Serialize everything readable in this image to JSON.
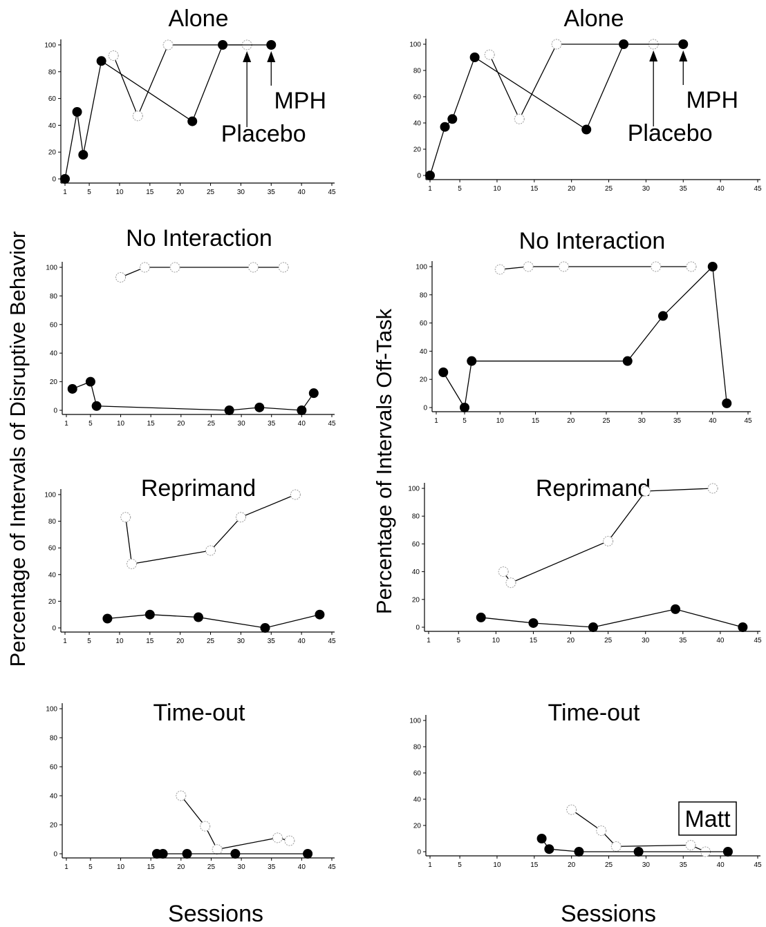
{
  "x_ticks": [
    1,
    5,
    10,
    15,
    20,
    25,
    30,
    35,
    40,
    45
  ],
  "y_ticks": [
    0,
    20,
    40,
    60,
    80,
    100
  ],
  "left_ylabel": "Percentage of Intervals of Disruptive Behavior",
  "right_ylabel": "Percentage of Intervals Off-Task",
  "xlabel": "Sessions",
  "participant": "Matt",
  "chart_data": [
    {
      "type": "line",
      "title": "Alone",
      "xlim": [
        1,
        45
      ],
      "ylim": [
        0,
        100
      ],
      "annotations": [
        {
          "text": "Placebo",
          "x": 31,
          "series": "Placebo"
        },
        {
          "text": "MPH",
          "x": 35,
          "series": "MPH"
        }
      ],
      "series": [
        {
          "marker": "open",
          "x": [
            9,
            13,
            18,
            31
          ],
          "y": [
            92,
            47,
            100,
            100
          ]
        },
        {
          "marker": "filled",
          "x": [
            1,
            3,
            4,
            7,
            22,
            27,
            35
          ],
          "y": [
            0,
            50,
            18,
            88,
            43,
            100,
            100
          ]
        }
      ]
    },
    {
      "type": "line",
      "title": "Alone",
      "xlim": [
        1,
        45
      ],
      "ylim": [
        0,
        100
      ],
      "annotations": [
        {
          "text": "Placebo",
          "x": 31,
          "series": "Placebo"
        },
        {
          "text": "MPH",
          "x": 35,
          "series": "MPH"
        }
      ],
      "series": [
        {
          "marker": "open",
          "x": [
            9,
            13,
            18,
            31
          ],
          "y": [
            92,
            43,
            100,
            100
          ]
        },
        {
          "marker": "filled",
          "x": [
            1,
            3,
            4,
            7,
            22,
            27,
            35
          ],
          "y": [
            0,
            37,
            43,
            90,
            35,
            100,
            100
          ]
        }
      ]
    },
    {
      "type": "line",
      "title": "No Interaction",
      "xlim": [
        1,
        45
      ],
      "ylim": [
        0,
        100
      ],
      "series": [
        {
          "marker": "open",
          "x": [
            10,
            14,
            19,
            32,
            37
          ],
          "y": [
            93,
            100,
            100,
            100,
            100
          ]
        },
        {
          "marker": "filled",
          "x": [
            2,
            5,
            6,
            28,
            33,
            40,
            42
          ],
          "y": [
            15,
            20,
            3,
            0,
            2,
            0,
            12
          ]
        }
      ]
    },
    {
      "type": "line",
      "title": "No Interaction",
      "xlim": [
        1,
        45
      ],
      "ylim": [
        0,
        100
      ],
      "series": [
        {
          "marker": "open",
          "x": [
            10,
            14,
            19,
            32,
            37
          ],
          "y": [
            98,
            100,
            100,
            100,
            100
          ]
        },
        {
          "marker": "filled",
          "x": [
            2,
            5,
            6,
            28,
            33,
            40,
            42
          ],
          "y": [
            25,
            0,
            33,
            33,
            65,
            100,
            3
          ]
        }
      ]
    },
    {
      "type": "line",
      "title": "Reprimand",
      "xlim": [
        1,
        45
      ],
      "ylim": [
        0,
        100
      ],
      "series": [
        {
          "marker": "open",
          "x": [
            11,
            12,
            25,
            30,
            39
          ],
          "y": [
            83,
            48,
            58,
            83,
            100
          ]
        },
        {
          "marker": "filled",
          "x": [
            8,
            15,
            23,
            34,
            43
          ],
          "y": [
            7,
            10,
            8,
            0,
            10
          ]
        }
      ]
    },
    {
      "type": "line",
      "title": "Reprimand",
      "xlim": [
        1,
        45
      ],
      "ylim": [
        0,
        100
      ],
      "series": [
        {
          "marker": "open",
          "x": [
            11,
            12,
            25,
            30,
            39
          ],
          "y": [
            40,
            32,
            62,
            98,
            100
          ]
        },
        {
          "marker": "filled",
          "x": [
            8,
            15,
            23,
            34,
            43
          ],
          "y": [
            7,
            3,
            0,
            13,
            0
          ]
        }
      ]
    },
    {
      "type": "line",
      "title": "Time-out",
      "xlim": [
        1,
        45
      ],
      "ylim": [
        0,
        100
      ],
      "series": [
        {
          "marker": "open",
          "x": [
            20,
            24,
            26,
            36,
            38
          ],
          "y": [
            40,
            19,
            3,
            11,
            9
          ]
        },
        {
          "marker": "filled",
          "x": [
            16,
            17,
            21,
            29,
            41
          ],
          "y": [
            0,
            0,
            0,
            0,
            0
          ]
        }
      ]
    },
    {
      "type": "line",
      "title": "Time-out",
      "xlim": [
        1,
        45
      ],
      "ylim": [
        0,
        100
      ],
      "series": [
        {
          "marker": "open",
          "x": [
            20,
            24,
            26,
            36,
            38
          ],
          "y": [
            32,
            16,
            4,
            5,
            0
          ]
        },
        {
          "marker": "filled",
          "x": [
            16,
            17,
            21,
            29,
            41
          ],
          "y": [
            10,
            2,
            0,
            0,
            0
          ]
        }
      ]
    }
  ]
}
